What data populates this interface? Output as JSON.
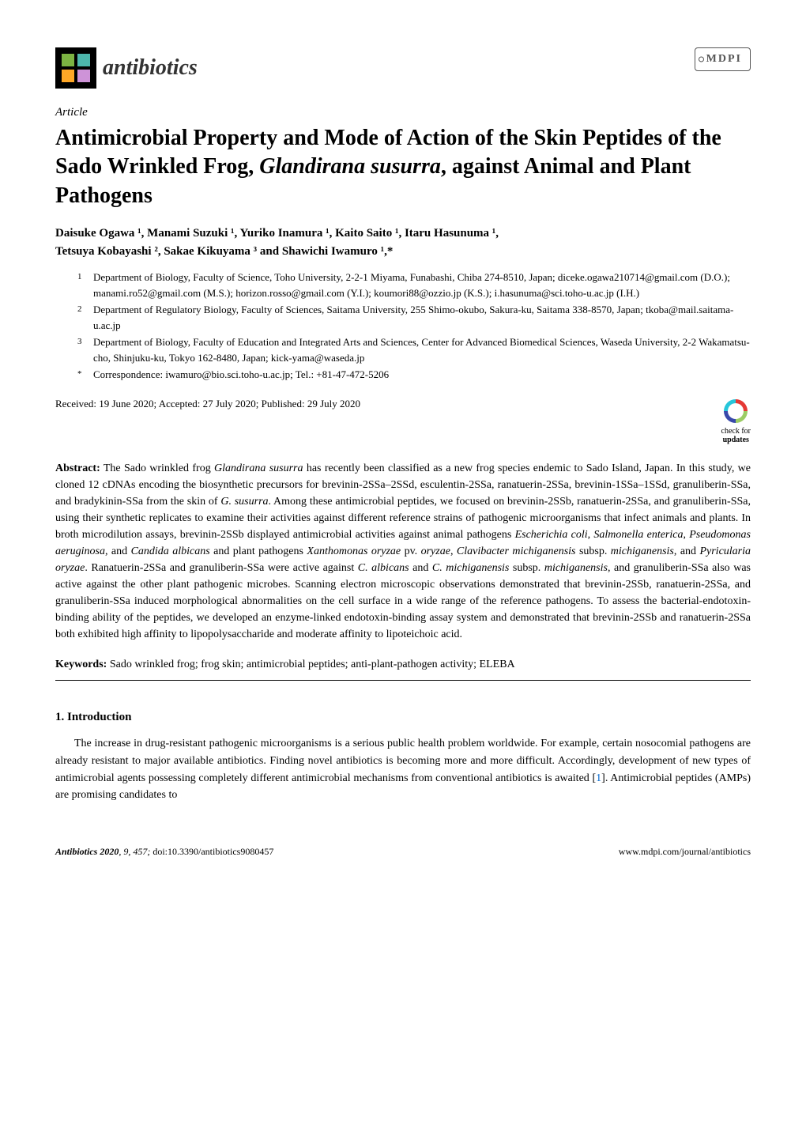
{
  "journal": {
    "name": "antibiotics",
    "publisher_logo_text": "MDPI"
  },
  "article": {
    "type": "Article",
    "title_pre": "Antimicrobial Property and Mode of Action of the Skin Peptides of the Sado Wrinkled Frog, ",
    "title_species": "Glandirana susurra",
    "title_post": ", against Animal and Plant Pathogens"
  },
  "authors_line1": "Daisuke Ogawa ¹, Manami Suzuki ¹, Yuriko Inamura ¹, Kaito Saito ¹, Itaru Hasunuma ¹,",
  "authors_line2": "Tetsuya Kobayashi ², Sakae Kikuyama ³ and Shawichi Iwamuro ¹,*",
  "affiliations": [
    {
      "num": "1",
      "text": "Department of Biology, Faculty of Science, Toho University, 2-2-1 Miyama, Funabashi, Chiba 274-8510, Japan; diceke.ogawa210714@gmail.com (D.O.); manami.ro52@gmail.com (M.S.); horizon.rosso@gmail.com (Y.I.); koumori88@ozzio.jp (K.S.); i.hasunuma@sci.toho-u.ac.jp (I.H.)"
    },
    {
      "num": "2",
      "text": "Department of Regulatory Biology, Faculty of Sciences, Saitama University, 255 Shimo-okubo, Sakura-ku, Saitama 338-8570, Japan; tkoba@mail.saitama-u.ac.jp"
    },
    {
      "num": "3",
      "text": "Department of Biology, Faculty of Education and Integrated Arts and Sciences, Center for Advanced Biomedical Sciences, Waseda University, 2-2 Wakamatsu-cho, Shinjuku-ku, Tokyo 162-8480, Japan; kick-yama@waseda.jp"
    },
    {
      "num": "*",
      "text": "Correspondence: iwamuro@bio.sci.toho-u.ac.jp; Tel.: +81-47-472-5206"
    }
  ],
  "dates": "Received: 19 June 2020; Accepted: 27 July 2020; Published: 29 July 2020",
  "check_updates": {
    "line1": "check for",
    "line2": "updates"
  },
  "abstract": {
    "label": "Abstract:",
    "text_parts": [
      {
        "t": " The Sado wrinkled frog "
      },
      {
        "sp": "Glandirana susurra"
      },
      {
        "t": " has recently been classified as a new frog species endemic to Sado Island, Japan. In this study, we cloned 12 cDNAs encoding the biosynthetic precursors for brevinin-2SSa–2SSd, esculentin-2SSa, ranatuerin-2SSa, brevinin-1SSa–1SSd, granuliberin-SSa, and bradykinin-SSa from the skin of "
      },
      {
        "sp": "G. susurra"
      },
      {
        "t": ". Among these antimicrobial peptides, we focused on brevinin-2SSb, ranatuerin-2SSa, and granuliberin-SSa, using their synthetic replicates to examine their activities against different reference strains of pathogenic microorganisms that infect animals and plants. In broth microdilution assays, brevinin-2SSb displayed antimicrobial activities against animal pathogens "
      },
      {
        "sp": "Escherichia coli"
      },
      {
        "t": ", "
      },
      {
        "sp": "Salmonella enterica"
      },
      {
        "t": ", "
      },
      {
        "sp": "Pseudomonas aeruginosa"
      },
      {
        "t": ", and "
      },
      {
        "sp": "Candida albicans"
      },
      {
        "t": " and plant pathogens "
      },
      {
        "sp": "Xanthomonas oryzae"
      },
      {
        "t": " pv. "
      },
      {
        "sp": "oryzae"
      },
      {
        "t": ", "
      },
      {
        "sp": "Clavibacter michiganensis"
      },
      {
        "t": " subsp. "
      },
      {
        "sp": "michiganensis"
      },
      {
        "t": ", and "
      },
      {
        "sp": "Pyricularia oryzae"
      },
      {
        "t": ". Ranatuerin-2SSa and granuliberin-SSa were active against "
      },
      {
        "sp": "C. albicans"
      },
      {
        "t": " and "
      },
      {
        "sp": "C. michiganensis"
      },
      {
        "t": " subsp. "
      },
      {
        "sp": "michiganensis"
      },
      {
        "t": ", and granuliberin-SSa also was active against the other plant pathogenic microbes. Scanning electron microscopic observations demonstrated that brevinin-2SSb, ranatuerin-2SSa, and granuliberin-SSa induced morphological abnormalities on the cell surface in a wide range of the reference pathogens. To assess the bacterial-endotoxin-binding ability of the peptides, we developed an enzyme-linked endotoxin-binding assay system and demonstrated that brevinin-2SSb and ranatuerin-2SSa both exhibited high affinity to lipopolysaccharide and moderate affinity to lipoteichoic acid."
      }
    ]
  },
  "keywords": {
    "label": "Keywords:",
    "text": " Sado wrinkled frog; frog skin; antimicrobial peptides; anti-plant-pathogen activity; ELEBA"
  },
  "section1": {
    "heading": "1. Introduction",
    "paragraph_parts": [
      {
        "t": "The increase in drug-resistant pathogenic microorganisms is a serious public health problem worldwide. For example, certain nosocomial pathogens are already resistant to major available antibiotics. Finding novel antibiotics is becoming more and more difficult. Accordingly, development of new types of antimicrobial agents possessing completely different antimicrobial mechanisms from conventional antibiotics is awaited ["
      },
      {
        "ref": "1"
      },
      {
        "t": "]. Antimicrobial peptides (AMPs) are promising candidates to"
      }
    ]
  },
  "footer": {
    "journal_name": "Antibiotics",
    "year": "2020",
    "volume_issue": "9",
    "page": "457",
    "doi": "doi:10.3390/antibiotics9080457",
    "url": "www.mdpi.com/journal/antibiotics"
  },
  "colors": {
    "text": "#000000",
    "link": "#0066cc",
    "logo_sq_a": "#7cb342",
    "logo_sq_b": "#4db6ac",
    "logo_sq_c": "#ffa726",
    "logo_sq_d": "#ce93d8",
    "check_red": "#e53935",
    "check_cyan": "#26c6da",
    "check_green": "#9ccc65",
    "check_navy": "#3949ab"
  }
}
